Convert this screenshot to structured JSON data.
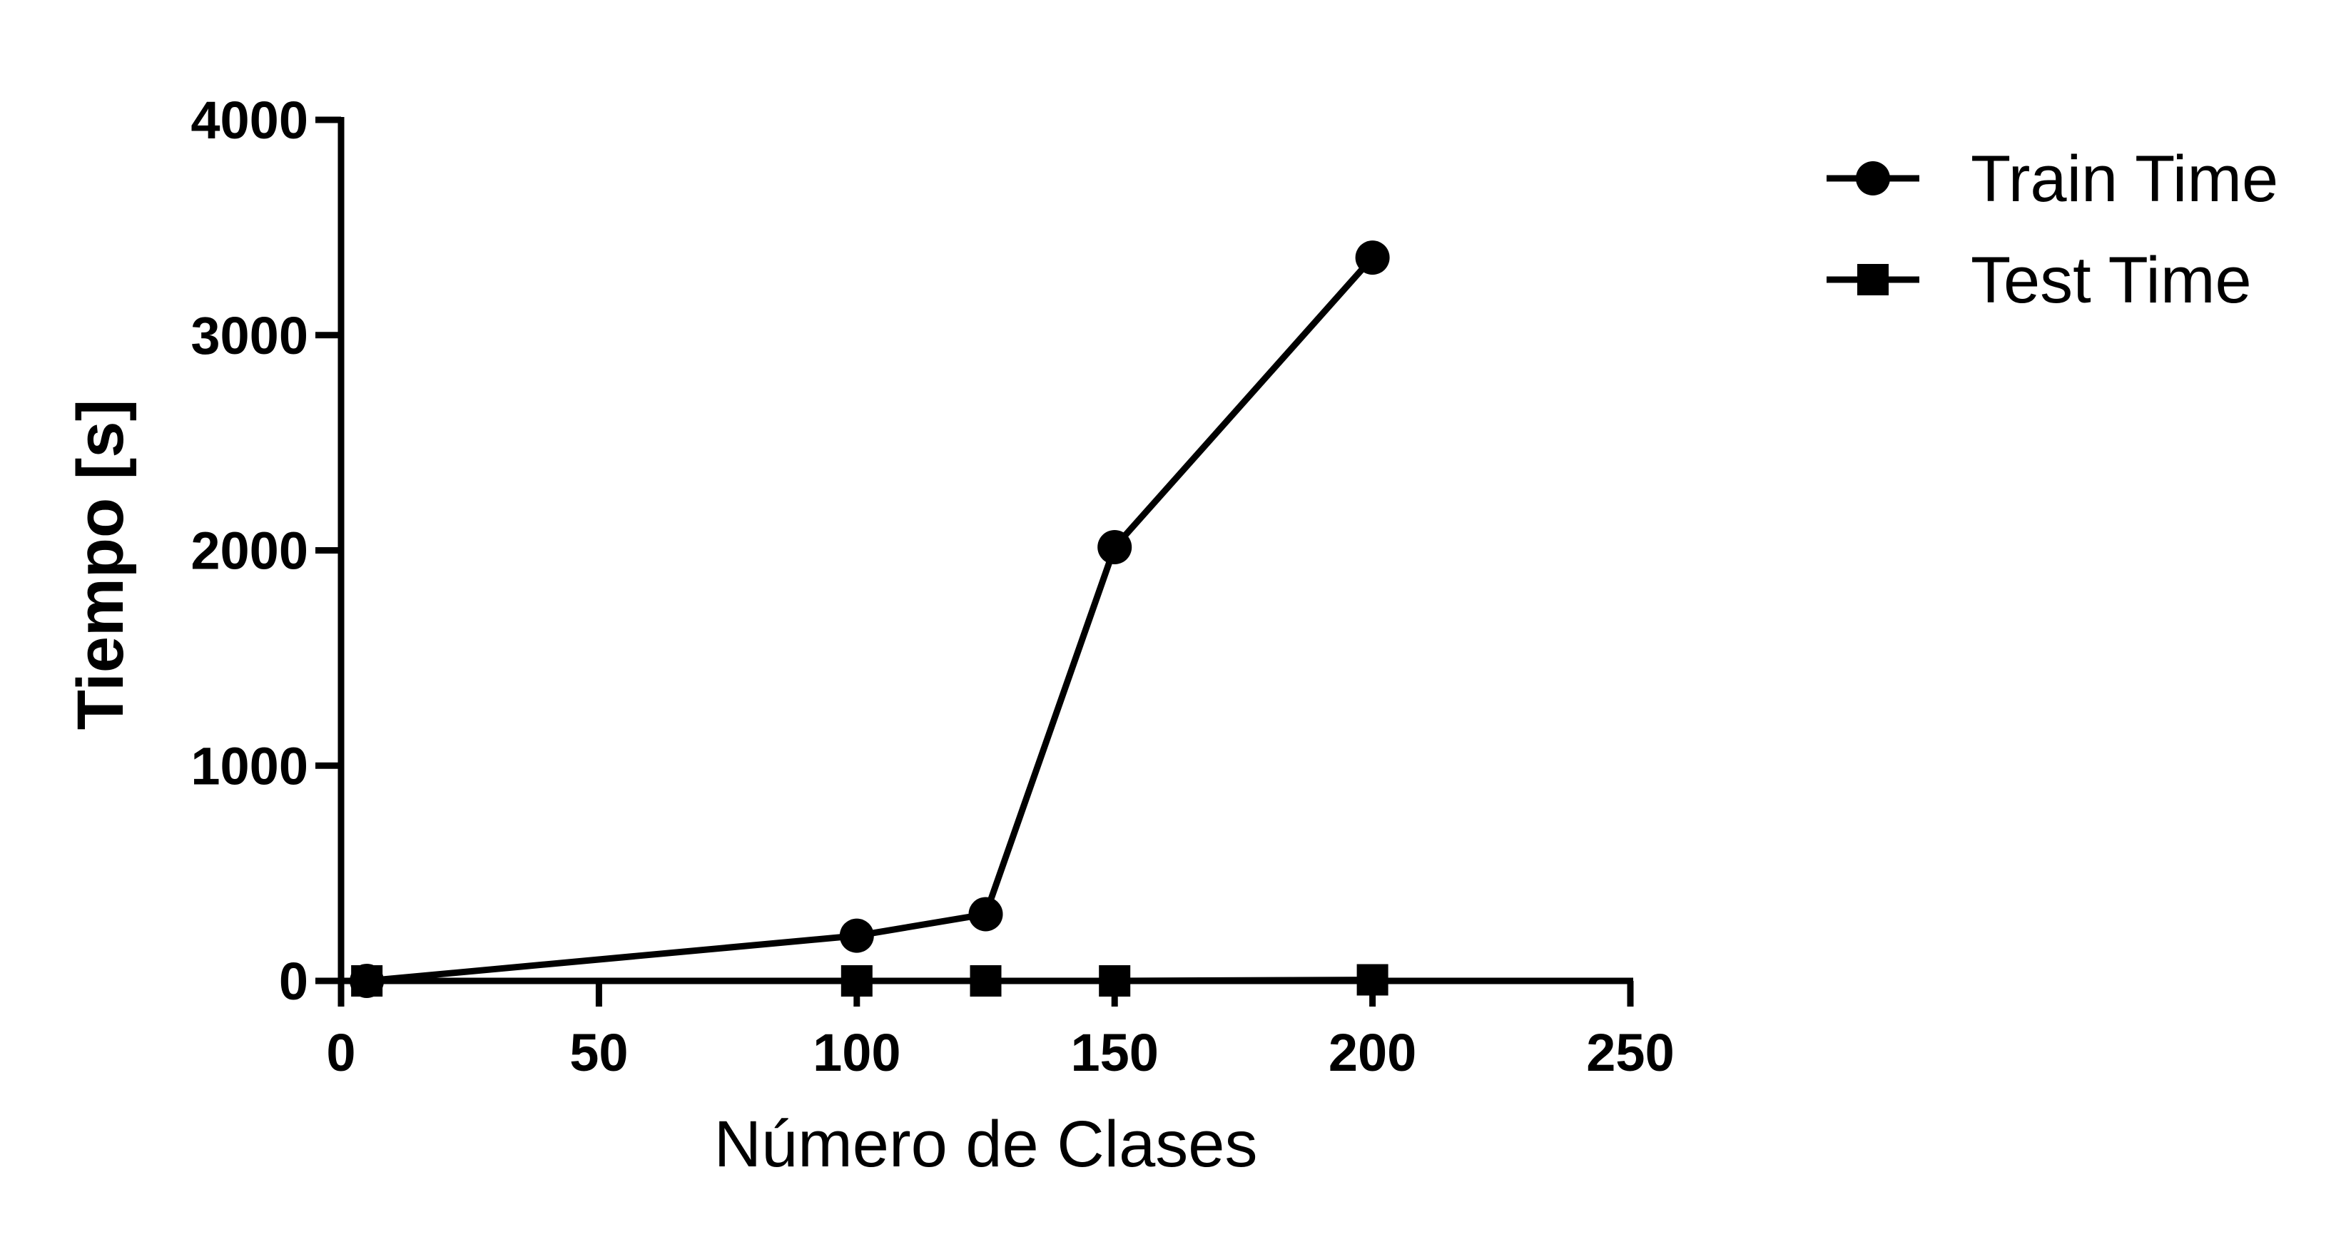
{
  "chart_data": {
    "type": "line",
    "xlabel": "Número de Clases",
    "ylabel": "Tiempo [s]",
    "xlim": [
      0,
      250
    ],
    "ylim": [
      0,
      4000
    ],
    "x_ticks": [
      "0",
      "50",
      "100",
      "150",
      "200",
      "250"
    ],
    "y_ticks": [
      "0",
      "1000",
      "2000",
      "3000",
      "4000"
    ],
    "grid": false,
    "legend_position": "top-right",
    "series": [
      {
        "name": "Train Time",
        "marker": "circle",
        "color": "#000000",
        "x": [
          5,
          100,
          125,
          150,
          200
        ],
        "values": [
          0,
          210,
          310,
          2015,
          3360
        ]
      },
      {
        "name": "Test Time",
        "marker": "square",
        "color": "#000000",
        "x": [
          5,
          100,
          125,
          150,
          200
        ],
        "values": [
          0,
          0,
          0,
          0,
          5
        ]
      }
    ]
  }
}
